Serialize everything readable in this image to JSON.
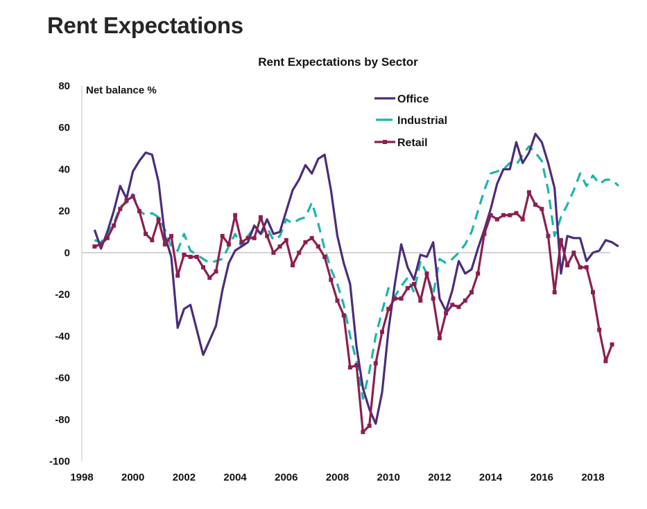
{
  "page_title": "Rent Expectations",
  "chart_data": {
    "type": "line",
    "title": "Rent Expectations by Sector",
    "xlabel": "",
    "ylabel": "Net balance %",
    "ylim": [
      -100,
      80
    ],
    "yticks": [
      80,
      60,
      40,
      20,
      0,
      -20,
      -40,
      -60,
      -80,
      -100
    ],
    "xlim": [
      1998,
      2018.75
    ],
    "xticks": [
      "1998",
      "2000",
      "2002",
      "2004",
      "2006",
      "2008",
      "2010",
      "2012",
      "2014",
      "2016",
      "2018"
    ],
    "grid": false,
    "legend": "top-right",
    "x_start": 1998.5,
    "x_step": 0.25,
    "series": [
      {
        "name": "Office",
        "color": "#4B2C7A",
        "style": "solid",
        "values": [
          11,
          2,
          10,
          20,
          32,
          26,
          39,
          44,
          48,
          47,
          34,
          8,
          -2,
          -36,
          -27,
          -25,
          -37,
          -49,
          -42,
          -35,
          -18,
          -5,
          1,
          3,
          5,
          13,
          9,
          16,
          9,
          10,
          20,
          30,
          35,
          42,
          38,
          45,
          47,
          30,
          8,
          -5,
          -15,
          -45,
          -65,
          -75,
          -82,
          -67,
          -37,
          -15,
          4,
          -7,
          -13,
          -1,
          -2,
          5,
          -22,
          -28,
          -18,
          -4,
          -10,
          -8,
          2,
          11,
          21,
          33,
          40,
          40,
          53,
          43,
          48,
          57,
          53,
          43,
          31,
          -10,
          8,
          7,
          7,
          -4,
          0,
          1,
          6,
          5,
          3
        ]
      },
      {
        "name": "Industrial",
        "color": "#1BB5AC",
        "style": "dashed",
        "values": [
          6,
          5,
          9,
          14,
          22,
          24,
          28,
          20,
          18,
          19,
          17,
          11,
          3,
          1,
          9,
          1,
          -1,
          -3,
          -5,
          -4,
          -3,
          3,
          9,
          3,
          8,
          12,
          9,
          12,
          6,
          8,
          16,
          14,
          16,
          17,
          24,
          14,
          2,
          -8,
          -15,
          -25,
          -40,
          -52,
          -70,
          -57,
          -40,
          -28,
          -17,
          -21,
          -16,
          -12,
          -19,
          -4,
          -10,
          -20,
          -3,
          -5,
          -3,
          0,
          4,
          10,
          20,
          30,
          38,
          39,
          40,
          43,
          42,
          47,
          51,
          48,
          44,
          30,
          8,
          17,
          23,
          30,
          38,
          32,
          37,
          33,
          35,
          35,
          32
        ]
      },
      {
        "name": "Retail",
        "color": "#8B1F4F",
        "style": "solid-markers",
        "values": [
          3,
          4,
          7,
          13,
          21,
          25,
          27,
          20,
          9,
          6,
          16,
          4,
          8,
          -11,
          -1,
          -2,
          -2,
          -7,
          -12,
          -9,
          8,
          4,
          18,
          5,
          7,
          7,
          17,
          8,
          0,
          3,
          6,
          -6,
          0,
          5,
          7,
          3,
          -2,
          -13,
          -23,
          -30,
          -55,
          -54,
          -86,
          -83,
          -53,
          -38,
          -27,
          -22,
          -22,
          -17,
          -15,
          -23,
          -10,
          -22,
          -41,
          -29,
          -25,
          -26,
          -23,
          -19,
          -10,
          9,
          18,
          16,
          18,
          18,
          19,
          16,
          29,
          23,
          21,
          8,
          -19,
          6,
          -6,
          0,
          -7,
          -7,
          -19,
          -37,
          -52,
          -44
        ]
      }
    ]
  }
}
